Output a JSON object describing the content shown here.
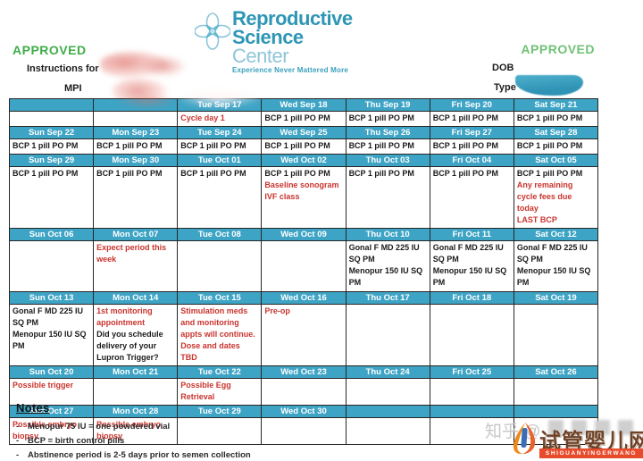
{
  "header": {
    "approved_left": "APPROVED",
    "approved_right": "APPROVED",
    "instructions_label": "Instructions for",
    "mpi_label": "MPI",
    "dob_label": "DOB",
    "type_label": "Type"
  },
  "logo": {
    "line1": "Reproductive",
    "line2": "Science",
    "line2b": "Center",
    "tagline": "Experience Never Mattered More"
  },
  "colors": {
    "header_teal": "#3ea4c5",
    "approved_green": "#3fae49",
    "alert_red": "#c9342e",
    "logo_teal": "#2e96b5",
    "banner_red": "#e84b2c"
  },
  "calendar": {
    "weeks": [
      {
        "days": [
          {
            "date": "",
            "lines": []
          },
          {
            "date": "",
            "lines": []
          },
          {
            "date": "Tue Sep 17",
            "lines": [
              {
                "text": "Cycle day 1",
                "color": "red"
              }
            ]
          },
          {
            "date": "Wed Sep 18",
            "lines": [
              {
                "text": "BCP 1 pill PO PM",
                "color": "black"
              }
            ]
          },
          {
            "date": "Thu Sep 19",
            "lines": [
              {
                "text": "BCP 1 pill PO PM",
                "color": "black"
              }
            ]
          },
          {
            "date": "Fri Sep 20",
            "lines": [
              {
                "text": "BCP 1 pill PO PM",
                "color": "black"
              }
            ]
          },
          {
            "date": "Sat Sep 21",
            "lines": [
              {
                "text": "BCP 1 pill PO PM",
                "color": "black"
              }
            ]
          }
        ]
      },
      {
        "days": [
          {
            "date": "Sun Sep 22",
            "lines": [
              {
                "text": "BCP 1 pill PO PM",
                "color": "black"
              }
            ]
          },
          {
            "date": "Mon Sep 23",
            "lines": [
              {
                "text": "BCP 1 pill PO PM",
                "color": "black"
              }
            ]
          },
          {
            "date": "Tue Sep 24",
            "lines": [
              {
                "text": "BCP 1 pill PO PM",
                "color": "black"
              }
            ]
          },
          {
            "date": "Wed Sep 25",
            "lines": [
              {
                "text": "BCP 1 pill PO PM",
                "color": "black"
              }
            ]
          },
          {
            "date": "Thu Sep 26",
            "lines": [
              {
                "text": "BCP 1 pill PO PM",
                "color": "black"
              }
            ]
          },
          {
            "date": "Fri Sep 27",
            "lines": [
              {
                "text": "BCP 1 pill PO PM",
                "color": "black"
              }
            ]
          },
          {
            "date": "Sat Sep 28",
            "lines": [
              {
                "text": "BCP 1 pill PO PM",
                "color": "black"
              }
            ]
          }
        ]
      },
      {
        "days": [
          {
            "date": "Sun Sep 29",
            "lines": [
              {
                "text": "BCP 1 pill PO PM",
                "color": "black"
              }
            ]
          },
          {
            "date": "Mon Sep 30",
            "lines": [
              {
                "text": "BCP 1 pill PO PM",
                "color": "black"
              }
            ]
          },
          {
            "date": "Tue Oct 01",
            "lines": [
              {
                "text": "BCP 1 pill PO PM",
                "color": "black"
              }
            ]
          },
          {
            "date": "Wed Oct 02",
            "lines": [
              {
                "text": "BCP 1 pill PO PM",
                "color": "black"
              },
              {
                "text": "Baseline sonogram",
                "color": "red"
              },
              {
                "text": "IVF class",
                "color": "red"
              }
            ]
          },
          {
            "date": "Thu Oct 03",
            "lines": [
              {
                "text": "BCP 1 pill PO PM",
                "color": "black"
              }
            ]
          },
          {
            "date": "Fri Oct 04",
            "lines": [
              {
                "text": "BCP 1 pill PO PM",
                "color": "black"
              }
            ]
          },
          {
            "date": "Sat Oct 05",
            "lines": [
              {
                "text": "BCP 1 pill PO PM",
                "color": "black"
              },
              {
                "text": "Any remaining cycle fees due today",
                "color": "red"
              },
              {
                "text": "LAST BCP",
                "color": "red"
              }
            ]
          }
        ]
      },
      {
        "days": [
          {
            "date": "Sun Oct 06",
            "lines": []
          },
          {
            "date": "Mon Oct 07",
            "lines": [
              {
                "text": "Expect period this week",
                "color": "red"
              }
            ]
          },
          {
            "date": "Tue Oct 08",
            "lines": []
          },
          {
            "date": "Wed Oct 09",
            "lines": []
          },
          {
            "date": "Thu Oct 10",
            "lines": [
              {
                "text": "Gonal F MD 225 IU SQ PM",
                "color": "black"
              },
              {
                "text": "Menopur 150 IU SQ PM",
                "color": "black"
              }
            ]
          },
          {
            "date": "Fri Oct 11",
            "lines": [
              {
                "text": "Gonal F MD 225 IU SQ PM",
                "color": "black"
              },
              {
                "text": "Menopur 150 IU SQ PM",
                "color": "black"
              }
            ]
          },
          {
            "date": "Sat Oct 12",
            "lines": [
              {
                "text": "Gonal F MD 225 IU SQ PM",
                "color": "black"
              },
              {
                "text": "Menopur 150 IU SQ PM",
                "color": "black"
              }
            ]
          }
        ]
      },
      {
        "days": [
          {
            "date": "Sun Oct 13",
            "lines": [
              {
                "text": "Gonal F MD 225 IU SQ PM",
                "color": "black"
              },
              {
                "text": "Menopur 150 IU SQ PM",
                "color": "black"
              }
            ]
          },
          {
            "date": "Mon Oct 14",
            "lines": [
              {
                "text": "1st monitoring appointment",
                "color": "red"
              },
              {
                "text": "Did you schedule delivery of your Lupron Trigger?",
                "color": "black"
              }
            ]
          },
          {
            "date": "Tue Oct 15",
            "lines": [
              {
                "text": "Stimulation meds and monitoring appts will continue. Dose and dates TBD",
                "color": "red"
              }
            ]
          },
          {
            "date": "Wed Oct 16",
            "lines": [
              {
                "text": "Pre-op",
                "color": "red"
              }
            ]
          },
          {
            "date": "Thu Oct 17",
            "lines": []
          },
          {
            "date": "Fri Oct 18",
            "lines": []
          },
          {
            "date": "Sat Oct 19",
            "lines": []
          }
        ]
      },
      {
        "days": [
          {
            "date": "Sun Oct 20",
            "lines": [
              {
                "text": "Possible trigger",
                "color": "red"
              }
            ]
          },
          {
            "date": "Mon Oct 21",
            "lines": []
          },
          {
            "date": "Tue Oct 22",
            "lines": [
              {
                "text": "Possible Egg Retrieval",
                "color": "red"
              }
            ]
          },
          {
            "date": "Wed Oct 23",
            "lines": []
          },
          {
            "date": "Thu Oct 24",
            "lines": []
          },
          {
            "date": "Fri Oct 25",
            "lines": []
          },
          {
            "date": "Sat Oct 26",
            "lines": []
          }
        ]
      },
      {
        "days": [
          {
            "date": "Sun Oct 27",
            "lines": [
              {
                "text": "Possible embryo biopsy",
                "color": "red"
              }
            ]
          },
          {
            "date": "Mon Oct 28",
            "lines": [
              {
                "text": "Possible embryo biopsy",
                "color": "red"
              }
            ]
          },
          {
            "date": "Tue Oct 29",
            "lines": []
          },
          {
            "date": "Wed Oct 30",
            "lines": []
          },
          {
            "date": "",
            "lines": []
          },
          {
            "date": "",
            "lines": []
          },
          {
            "date": "",
            "lines": []
          }
        ]
      }
    ]
  },
  "notes": {
    "title": "Notes",
    "items": [
      "Menopur 75 IU = one powdered vial",
      "BCP = birth control pills",
      "Abstinence period is 2-5 days prior to semen collection"
    ]
  },
  "watermark": {
    "zhihu": "知乎 @",
    "site_name": "试管婴儿网",
    "banner": "SHIGUANYINGERWANG"
  }
}
